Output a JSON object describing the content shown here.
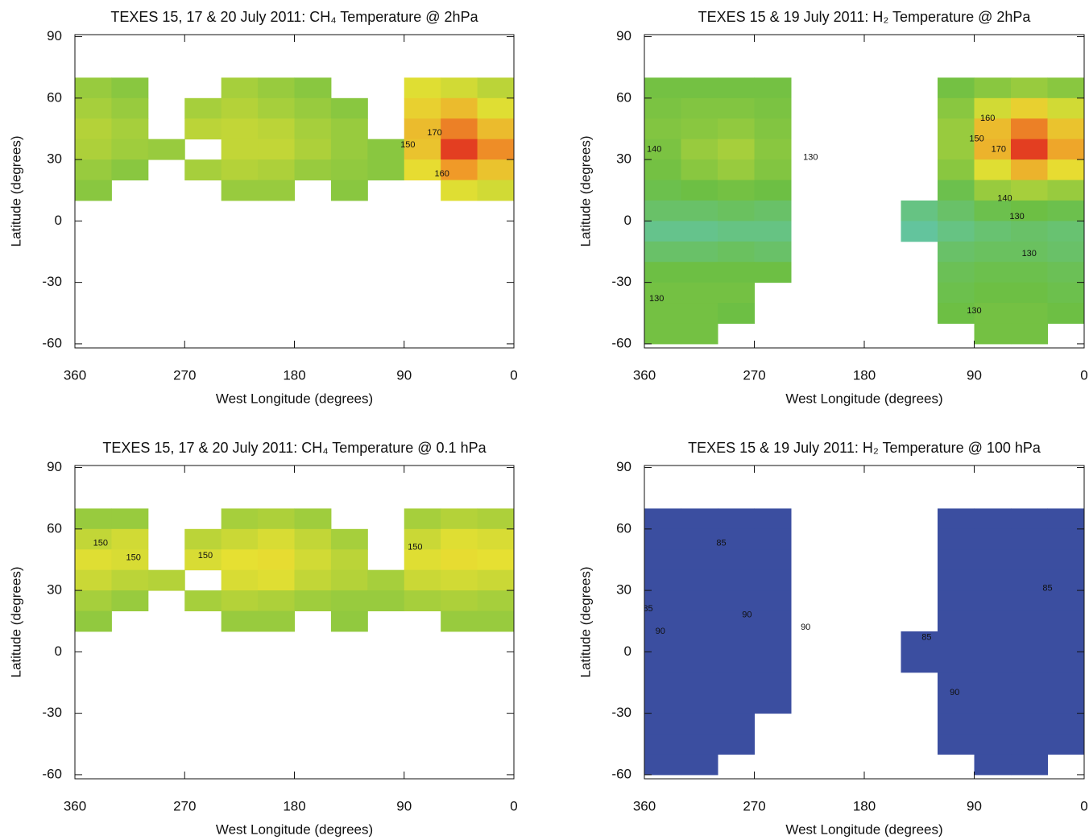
{
  "chart_data": [
    {
      "type": "heatmap",
      "title": "TEXES 15, 17 & 20 July 2011: CH₄ Temperature @ 2hPa",
      "xlabel": "West Longitude (degrees)",
      "ylabel": "Latitude (degrees)",
      "xlim": [
        360,
        0
      ],
      "ylim": [
        -62,
        91
      ],
      "xticks": [
        360,
        270,
        180,
        90,
        0
      ],
      "yticks": [
        -60,
        -30,
        0,
        30,
        60,
        90
      ],
      "zlim": [
        100,
        185
      ],
      "colorscale": [
        "#3b4ea0",
        "#5cc8dc",
        "#6dbf44",
        "#e6e032",
        "#f09a28",
        "#e02a20"
      ],
      "x": [
        345,
        315,
        285,
        255,
        225,
        195,
        165,
        135,
        105,
        75,
        45,
        15
      ],
      "y": [
        65,
        55,
        45,
        35,
        25,
        15
      ],
      "z": [
        [
          140,
          138,
          null,
          null,
          142,
          140,
          138,
          null,
          null,
          150,
          148,
          145
        ],
        [
          142,
          140,
          null,
          142,
          144,
          142,
          140,
          138,
          null,
          155,
          160,
          150
        ],
        [
          144,
          142,
          null,
          145,
          146,
          145,
          142,
          140,
          null,
          160,
          172,
          160
        ],
        [
          143,
          141,
          140,
          null,
          146,
          146,
          143,
          140,
          138,
          158,
          182,
          170
        ],
        [
          140,
          138,
          null,
          142,
          144,
          143,
          140,
          139,
          138,
          152,
          168,
          158
        ],
        [
          138,
          null,
          null,
          null,
          140,
          140,
          null,
          138,
          null,
          null,
          150,
          148
        ]
      ],
      "annotations": [
        {
          "text": "150",
          "x": 87,
          "y": 37
        },
        {
          "text": "170",
          "x": 65,
          "y": 43
        },
        {
          "text": "160",
          "x": 59,
          "y": 23
        }
      ]
    },
    {
      "type": "heatmap",
      "title": "TEXES 15 & 19 July 2011: H₂ Temperature @ 2hPa",
      "xlabel": "West Longitude (degrees)",
      "ylabel": "Latitude (degrees)",
      "xlim": [
        360,
        0
      ],
      "ylim": [
        -62,
        91
      ],
      "xticks": [
        360,
        270,
        180,
        90,
        0
      ],
      "yticks": [
        -60,
        -30,
        0,
        30,
        60,
        90
      ],
      "zlim": [
        100,
        185
      ],
      "colorscale": [
        "#3b4ea0",
        "#5cc8dc",
        "#6dbf44",
        "#e6e032",
        "#f09a28",
        "#e02a20"
      ],
      "x": [
        345,
        315,
        285,
        255,
        225,
        195,
        165,
        135,
        105,
        75,
        45,
        15
      ],
      "y": [
        65,
        55,
        45,
        35,
        25,
        15,
        5,
        -5,
        -15,
        -25,
        -35,
        -45,
        -55
      ],
      "z": [
        [
          135,
          135,
          135,
          135,
          null,
          null,
          null,
          null,
          135,
          138,
          140,
          138
        ],
        [
          136,
          137,
          137,
          136,
          null,
          null,
          null,
          null,
          138,
          148,
          155,
          148
        ],
        [
          137,
          138,
          139,
          137,
          null,
          null,
          null,
          null,
          140,
          160,
          172,
          158
        ],
        [
          136,
          140,
          142,
          138,
          null,
          null,
          null,
          null,
          140,
          162,
          182,
          165
        ],
        [
          135,
          138,
          140,
          137,
          null,
          null,
          null,
          null,
          138,
          150,
          162,
          152
        ],
        [
          133,
          134,
          135,
          134,
          null,
          null,
          null,
          null,
          133,
          140,
          142,
          140
        ],
        [
          130,
          130,
          131,
          130,
          null,
          null,
          null,
          127,
          130,
          133,
          134,
          133
        ],
        [
          126,
          126,
          127,
          127,
          null,
          null,
          null,
          124,
          127,
          129,
          130,
          129
        ],
        [
          130,
          130,
          131,
          130,
          null,
          null,
          null,
          null,
          130,
          131,
          131,
          130
        ],
        [
          134,
          134,
          134,
          134,
          null,
          null,
          null,
          null,
          132,
          133,
          133,
          132
        ],
        [
          135,
          135,
          135,
          null,
          null,
          null,
          null,
          null,
          133,
          134,
          134,
          133
        ],
        [
          135,
          135,
          134,
          null,
          null,
          null,
          null,
          null,
          134,
          135,
          135,
          134
        ],
        [
          135,
          135,
          null,
          null,
          null,
          null,
          null,
          null,
          null,
          135,
          135,
          null
        ]
      ],
      "annotations": [
        {
          "text": "140",
          "x": 352,
          "y": 35
        },
        {
          "text": "150",
          "x": 88,
          "y": 40
        },
        {
          "text": "160",
          "x": 79,
          "y": 50
        },
        {
          "text": "170",
          "x": 70,
          "y": 35
        },
        {
          "text": "140",
          "x": 65,
          "y": 11
        },
        {
          "text": "130",
          "x": 55,
          "y": 2
        },
        {
          "text": "130",
          "x": 45,
          "y": -16
        },
        {
          "text": "130",
          "x": 350,
          "y": -38
        },
        {
          "text": "130",
          "x": 90,
          "y": -44
        },
        {
          "text": "130",
          "x": 224,
          "y": 31
        }
      ]
    },
    {
      "type": "heatmap",
      "title": "TEXES 15, 17 & 20 July 2011: CH₄ Temperature @ 0.1 hPa",
      "xlabel": "West Longitude (degrees)",
      "ylabel": "Latitude (degrees)",
      "xlim": [
        360,
        0
      ],
      "ylim": [
        -62,
        91
      ],
      "xticks": [
        360,
        270,
        180,
        90,
        0
      ],
      "yticks": [
        -60,
        -30,
        0,
        30,
        60,
        90
      ],
      "zlim": [
        100,
        185
      ],
      "colorscale": [
        "#3b4ea0",
        "#5cc8dc",
        "#6dbf44",
        "#e6e032",
        "#f09a28",
        "#e02a20"
      ],
      "x": [
        345,
        315,
        285,
        255,
        225,
        195,
        165,
        135,
        105,
        75,
        45,
        15
      ],
      "y": [
        65,
        55,
        45,
        35,
        25,
        15
      ],
      "z": [
        [
          140,
          140,
          null,
          null,
          142,
          143,
          141,
          null,
          null,
          142,
          144,
          143
        ],
        [
          146,
          148,
          null,
          145,
          147,
          149,
          146,
          142,
          null,
          147,
          150,
          149
        ],
        [
          150,
          149,
          null,
          149,
          151,
          152,
          148,
          145,
          null,
          150,
          152,
          151
        ],
        [
          147,
          145,
          144,
          null,
          149,
          150,
          146,
          144,
          142,
          147,
          148,
          147
        ],
        [
          142,
          140,
          null,
          142,
          144,
          143,
          141,
          140,
          140,
          142,
          143,
          142
        ],
        [
          139,
          null,
          null,
          null,
          140,
          140,
          null,
          139,
          null,
          null,
          140,
          140
        ]
      ],
      "annotations": [
        {
          "text": "150",
          "x": 339,
          "y": 53
        },
        {
          "text": "150",
          "x": 312,
          "y": 46
        },
        {
          "text": "150",
          "x": 253,
          "y": 47
        },
        {
          "text": "150",
          "x": 81,
          "y": 51
        }
      ]
    },
    {
      "type": "heatmap",
      "title": "TEXES 15 & 19 July 2011: H₂ Temperature @ 100 hPa",
      "xlabel": "West Longitude (degrees)",
      "ylabel": "Latitude (degrees)",
      "xlim": [
        360,
        0
      ],
      "ylim": [
        -62,
        91
      ],
      "xticks": [
        360,
        270,
        180,
        90,
        0
      ],
      "yticks": [
        -60,
        -30,
        0,
        30,
        60,
        90
      ],
      "zlim": [
        100,
        185
      ],
      "colorscale": [
        "#3b4ea0",
        "#5cc8dc",
        "#6dbf44",
        "#e6e032",
        "#f09a28",
        "#e02a20"
      ],
      "x": [
        345,
        315,
        285,
        255,
        225,
        195,
        165,
        135,
        105,
        75,
        45,
        15
      ],
      "y": [
        65,
        55,
        45,
        35,
        25,
        15,
        5,
        -5,
        -15,
        -25,
        -35,
        -45,
        -55
      ],
      "z": [
        [
          86,
          86,
          86,
          86,
          null,
          null,
          null,
          null,
          86,
          86,
          86,
          86
        ],
        [
          87,
          87,
          86,
          87,
          null,
          null,
          null,
          null,
          86,
          87,
          86,
          86
        ],
        [
          88,
          87,
          88,
          88,
          null,
          null,
          null,
          null,
          87,
          87,
          86,
          86
        ],
        [
          88,
          89,
          89,
          88,
          null,
          null,
          null,
          null,
          87,
          87,
          86,
          86
        ],
        [
          88,
          89,
          90,
          89,
          null,
          null,
          null,
          null,
          87,
          88,
          87,
          86
        ],
        [
          89,
          90,
          91,
          90,
          null,
          null,
          null,
          null,
          88,
          88,
          88,
          87
        ],
        [
          89,
          90,
          91,
          90,
          null,
          null,
          null,
          87,
          88,
          89,
          88,
          88
        ],
        [
          89,
          90,
          90,
          89,
          null,
          null,
          null,
          87,
          88,
          89,
          89,
          88
        ],
        [
          89,
          89,
          89,
          89,
          null,
          null,
          null,
          null,
          88,
          90,
          89,
          88
        ],
        [
          88,
          88,
          88,
          88,
          null,
          null,
          null,
          null,
          88,
          89,
          89,
          88
        ],
        [
          87,
          87,
          87,
          null,
          null,
          null,
          null,
          null,
          87,
          88,
          88,
          87
        ],
        [
          87,
          87,
          87,
          null,
          null,
          null,
          null,
          null,
          87,
          87,
          87,
          87
        ],
        [
          87,
          87,
          null,
          null,
          null,
          null,
          null,
          null,
          null,
          87,
          87,
          null
        ]
      ],
      "annotations": [
        {
          "text": "85",
          "x": 297,
          "y": 53
        },
        {
          "text": "85",
          "x": 357,
          "y": 21
        },
        {
          "text": "90",
          "x": 347,
          "y": 10
        },
        {
          "text": "90",
          "x": 276,
          "y": 18
        },
        {
          "text": "90",
          "x": 228,
          "y": 12
        },
        {
          "text": "85",
          "x": 30,
          "y": 31
        },
        {
          "text": "85",
          "x": 129,
          "y": 7
        },
        {
          "text": "90",
          "x": 106,
          "y": -20
        }
      ]
    }
  ]
}
